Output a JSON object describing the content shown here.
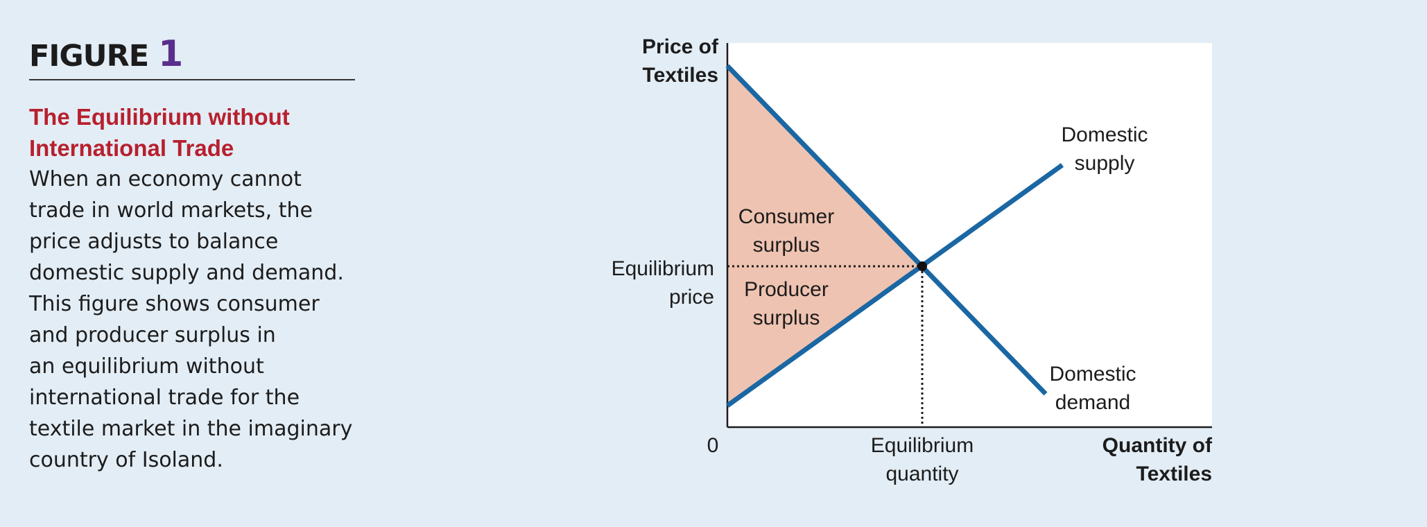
{
  "figure": {
    "label": "FIGURE",
    "number": "1"
  },
  "caption": {
    "title_lines": [
      "The Equilibrium without",
      "International Trade"
    ],
    "body_lines": [
      "When an economy cannot",
      "trade in world markets, the",
      "price adjusts to balance",
      "domestic supply and demand.",
      "This figure shows consumer",
      "and producer surplus in",
      "an equilibrium without",
      "international trade for the",
      "textile market in the imaginary",
      "country of Isoland."
    ]
  },
  "diagram": {
    "y_axis_title": [
      "Price of",
      "Textiles"
    ],
    "x_axis_title": [
      "Quantity of",
      "Textiles"
    ],
    "origin_label": "0",
    "equilibrium_price_label": [
      "Equilibrium",
      "price"
    ],
    "equilibrium_quantity_label": [
      "Equilibrium",
      "quantity"
    ],
    "supply_label": [
      "Domestic",
      "supply"
    ],
    "demand_label": [
      "Domestic",
      "demand"
    ],
    "consumer_surplus_label": [
      "Consumer",
      "surplus"
    ],
    "producer_surplus_label": [
      "Producer",
      "surplus"
    ],
    "colors": {
      "background": "#e3edf5",
      "curve": "#1a67a3",
      "surplus_fill": "#efc3b1",
      "title_red": "#b7202e",
      "figure_number": "#5a2e8c"
    }
  }
}
